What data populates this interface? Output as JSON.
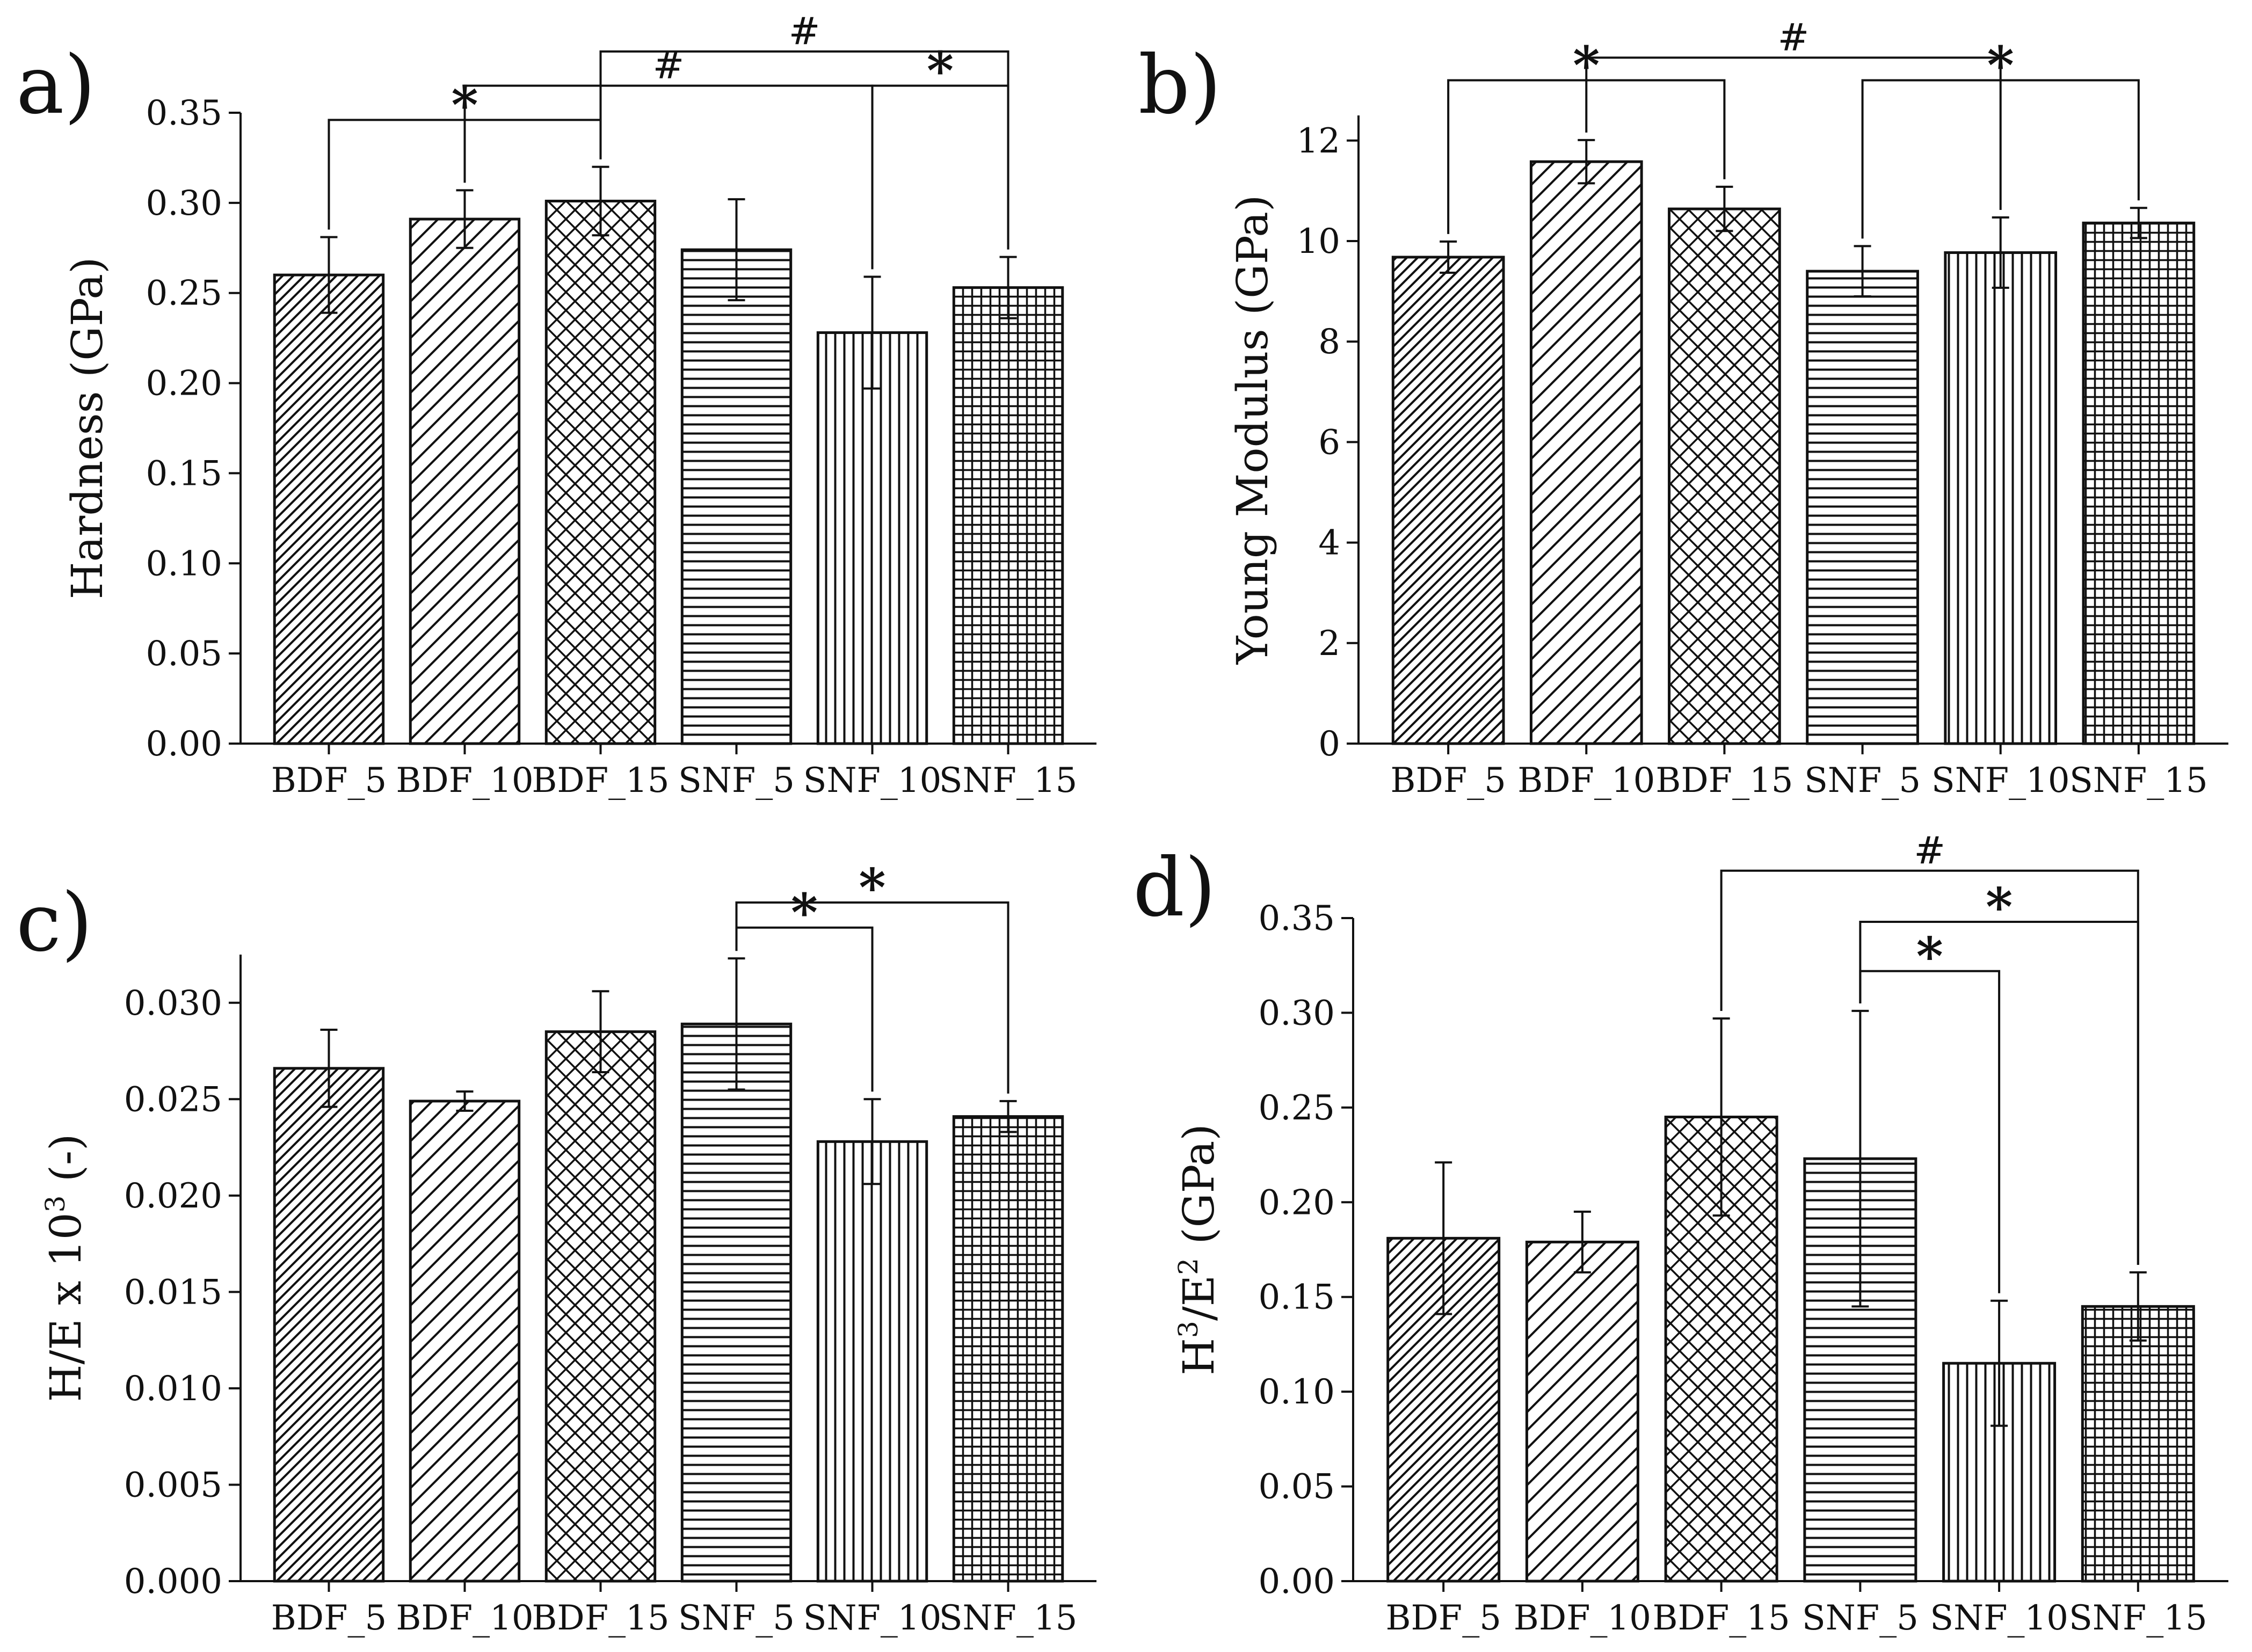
{
  "chart_data": [
    {
      "panel": "a)",
      "type": "bar",
      "ylabel": "Hardness (GPa)",
      "ylim": [
        0,
        0.35
      ],
      "yticks": [
        "0.00",
        "0.05",
        "0.10",
        "0.15",
        "0.20",
        "0.25",
        "0.30",
        "0.35"
      ],
      "categories": [
        "BDF_5",
        "BDF_10",
        "BDF_15",
        "SNF_5",
        "SNF_10",
        "SNF_15"
      ],
      "values": [
        0.26,
        0.291,
        0.301,
        0.274,
        0.228,
        0.253
      ],
      "errors": [
        0.021,
        0.016,
        0.019,
        0.028,
        0.031,
        0.017
      ],
      "patterns": [
        "dense-diagonal",
        "diagonal",
        "crosshatch",
        "horizontal",
        "vertical",
        "grid"
      ],
      "significance": [
        {
          "from": 0,
          "to": 2,
          "label": "*",
          "level": 0.346
        },
        {
          "from": 1,
          "to": 4,
          "label": "#",
          "level": 0.365
        },
        {
          "from": 2,
          "to": 5,
          "label": "#",
          "level": 0.384
        },
        {
          "from": 4,
          "to": 5,
          "label": "*",
          "level": 0.365
        }
      ]
    },
    {
      "panel": "b)",
      "type": "bar",
      "ylabel": "Young Modulus (GPa)",
      "ylim": [
        0,
        12.5
      ],
      "yticks": [
        "0",
        "2",
        "4",
        "6",
        "8",
        "10",
        "12"
      ],
      "categories": [
        "BDF_5",
        "BDF_10",
        "BDF_15",
        "SNF_5",
        "SNF_10",
        "SNF_15"
      ],
      "values": [
        9.68,
        11.58,
        10.64,
        9.4,
        9.77,
        10.36
      ],
      "errors": [
        0.31,
        0.43,
        0.44,
        0.5,
        0.7,
        0.3
      ],
      "patterns": [
        "dense-diagonal",
        "diagonal",
        "crosshatch",
        "horizontal",
        "vertical",
        "grid"
      ],
      "significance": [
        {
          "from": 0,
          "to": 2,
          "label": "*",
          "level": 13.2
        },
        {
          "from": 1,
          "to": 4,
          "label": "#",
          "level": 13.65
        },
        {
          "from": 3,
          "to": 5,
          "label": "*",
          "level": 13.2
        }
      ]
    },
    {
      "panel": "c)",
      "type": "bar",
      "ylabel": "H/E x 10",
      "ylabel_sup": "3",
      "ylabel_suffix": " (-)",
      "ylim": [
        0,
        0.0325
      ],
      "yticks": [
        "0.000",
        "0.005",
        "0.010",
        "0.015",
        "0.020",
        "0.025",
        "0.030"
      ],
      "categories": [
        "BDF_5",
        "BDF_10",
        "BDF_15",
        "SNF_5",
        "SNF_10",
        "SNF_15"
      ],
      "values": [
        0.0266,
        0.0249,
        0.0285,
        0.0289,
        0.0228,
        0.0241
      ],
      "errors": [
        0.002,
        0.0005,
        0.0021,
        0.0034,
        0.0022,
        0.0008
      ],
      "patterns": [
        "dense-diagonal",
        "diagonal",
        "crosshatch",
        "horizontal",
        "vertical",
        "grid"
      ],
      "significance": [
        {
          "from": 3,
          "to": 4,
          "label": "*",
          "level": 0.0339
        },
        {
          "from": 3,
          "to": 5,
          "label": "*",
          "level": 0.0352
        }
      ]
    },
    {
      "panel": "d)",
      "type": "bar",
      "ylabel": "H",
      "ylabel_sup": "3",
      "ylabel_mid": "/E",
      "ylabel_sup2": "2",
      "ylabel_suffix": " (GPa)",
      "ylim": [
        0,
        0.35
      ],
      "yticks": [
        "0.00",
        "0.05",
        "0.10",
        "0.15",
        "0.20",
        "0.25",
        "0.30",
        "0.35"
      ],
      "categories": [
        "BDF_5",
        "BDF_10",
        "BDF_15",
        "SNF_5",
        "SNF_10",
        "SNF_15"
      ],
      "values": [
        0.181,
        0.179,
        0.245,
        0.223,
        0.115,
        0.145
      ],
      "errors": [
        0.04,
        0.016,
        0.052,
        0.078,
        0.033,
        0.018
      ],
      "patterns": [
        "dense-diagonal",
        "diagonal",
        "crosshatch",
        "horizontal",
        "vertical",
        "grid"
      ],
      "significance": [
        {
          "from": 3,
          "to": 4,
          "label": "*",
          "level": 0.322
        },
        {
          "from": 3,
          "to": 5,
          "label": "*",
          "level": 0.348
        },
        {
          "from": 2,
          "to": 5,
          "label": "#",
          "level": 0.375
        }
      ]
    }
  ]
}
